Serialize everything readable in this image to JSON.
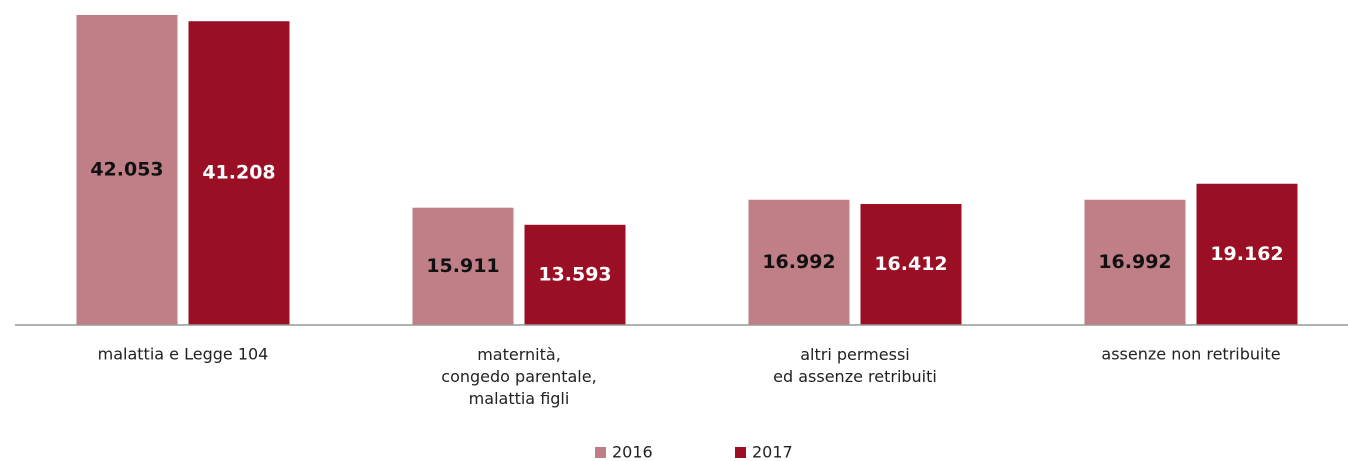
{
  "chart_data": {
    "type": "bar",
    "categories": [
      "malattia e Legge 104",
      [
        "maternità,",
        "congedo parentale,",
        "malattia figli"
      ],
      [
        "altri permessi",
        "ed assenze retribuiti"
      ],
      "assenze non retribuite"
    ],
    "series": [
      {
        "name": "2016",
        "color": "#c07f86",
        "label_color": "#111111",
        "values": [
          42053,
          15911,
          16992,
          16992
        ],
        "value_labels": [
          "42.053",
          "15.911",
          "16.992",
          "16.992"
        ]
      },
      {
        "name": "2017",
        "color": "#9b0f24",
        "label_color": "#ffffff",
        "values": [
          41208,
          13593,
          16412,
          19162
        ],
        "value_labels": [
          "41.208",
          "13.593",
          "16.412",
          "19.162"
        ]
      }
    ],
    "legend": "bottom"
  }
}
